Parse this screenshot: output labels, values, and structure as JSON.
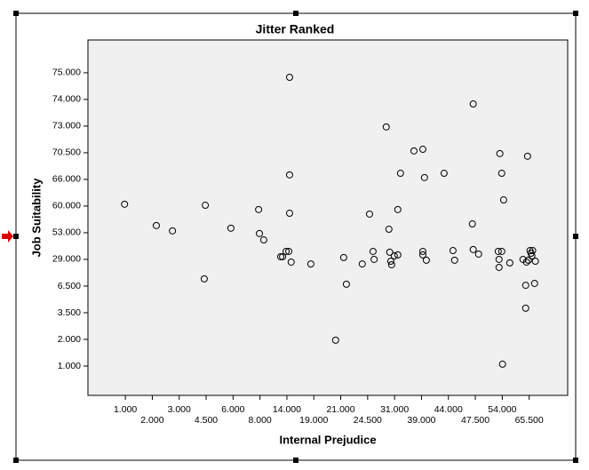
{
  "chart_data": {
    "type": "scatter",
    "title": "Jitter Ranked",
    "xlabel": "Internal Prejudice",
    "ylabel": "Job Suitability",
    "xlim": [
      -0.39,
      17.43
    ],
    "ylim": [
      -0.1,
      13.23
    ],
    "xticks": [
      {
        "value": 1,
        "label": "1.000"
      },
      {
        "value": 2,
        "label": "2.000"
      },
      {
        "value": 3,
        "label": "3.000"
      },
      {
        "value": 4,
        "label": "4.500"
      },
      {
        "value": 5,
        "label": "6.000"
      },
      {
        "value": 6,
        "label": "8.000"
      },
      {
        "value": 7,
        "label": "14.000"
      },
      {
        "value": 8,
        "label": "19.000"
      },
      {
        "value": 9,
        "label": "21.000"
      },
      {
        "value": 10,
        "label": "24.500"
      },
      {
        "value": 11,
        "label": "31.000"
      },
      {
        "value": 12,
        "label": "39.000"
      },
      {
        "value": 13,
        "label": "44.000"
      },
      {
        "value": 14,
        "label": "47.500"
      },
      {
        "value": 15,
        "label": "54.000"
      },
      {
        "value": 16,
        "label": "65.500"
      }
    ],
    "yticks": [
      {
        "value": 1,
        "label": "1.000"
      },
      {
        "value": 2,
        "label": "2.000"
      },
      {
        "value": 3,
        "label": "3.500"
      },
      {
        "value": 4,
        "label": "6.500"
      },
      {
        "value": 5,
        "label": "29.000"
      },
      {
        "value": 6,
        "label": "53.000"
      },
      {
        "value": 7,
        "label": "60.000"
      },
      {
        "value": 8,
        "label": "66.000"
      },
      {
        "value": 9,
        "label": "70.500"
      },
      {
        "value": 10,
        "label": "73.000"
      },
      {
        "value": 11,
        "label": "74.000"
      },
      {
        "value": 12,
        "label": "75.000"
      }
    ],
    "x": [
      0.97,
      2.15,
      2.75,
      3.97,
      3.93,
      4.92,
      5.95,
      5.98,
      6.14,
      6.77,
      6.84,
      6.97,
      7.07,
      7.1,
      7.1,
      7.1,
      7.16,
      7.89,
      8.81,
      9.11,
      9.21,
      9.8,
      10.07,
      10.2,
      10.24,
      10.69,
      10.79,
      10.82,
      10.86,
      10.89,
      10.99,
      11.12,
      11.12,
      11.22,
      11.72,
      12.05,
      12.05,
      12.05,
      12.11,
      12.18,
      12.84,
      13.17,
      13.23,
      13.89,
      13.92,
      13.92,
      14.12,
      14.85,
      14.88,
      14.88,
      14.91,
      14.98,
      14.98,
      15.01,
      15.05,
      15.28,
      15.77,
      15.87,
      15.87,
      15.9,
      15.94,
      15.97,
      16.03,
      16.07,
      16.13,
      16.2,
      16.23,
      16.1
    ],
    "values": [
      7.07,
      6.27,
      6.07,
      7.03,
      4.27,
      6.17,
      6.87,
      5.97,
      5.73,
      5.1,
      5.1,
      5.3,
      5.3,
      11.83,
      8.17,
      6.73,
      4.9,
      4.83,
      1.97,
      5.07,
      4.07,
      4.83,
      6.7,
      5.3,
      5.0,
      9.97,
      6.13,
      5.27,
      4.93,
      4.8,
      5.13,
      5.17,
      6.87,
      8.23,
      9.07,
      9.13,
      5.3,
      5.17,
      8.07,
      4.97,
      8.23,
      5.33,
      4.97,
      6.33,
      10.83,
      5.37,
      5.2,
      5.3,
      5.0,
      4.7,
      8.97,
      5.3,
      8.23,
      1.07,
      7.23,
      4.87,
      5.0,
      4.03,
      3.17,
      4.9,
      8.87,
      4.97,
      5.33,
      5.23,
      5.33,
      4.1,
      4.93,
      5.13
    ]
  }
}
